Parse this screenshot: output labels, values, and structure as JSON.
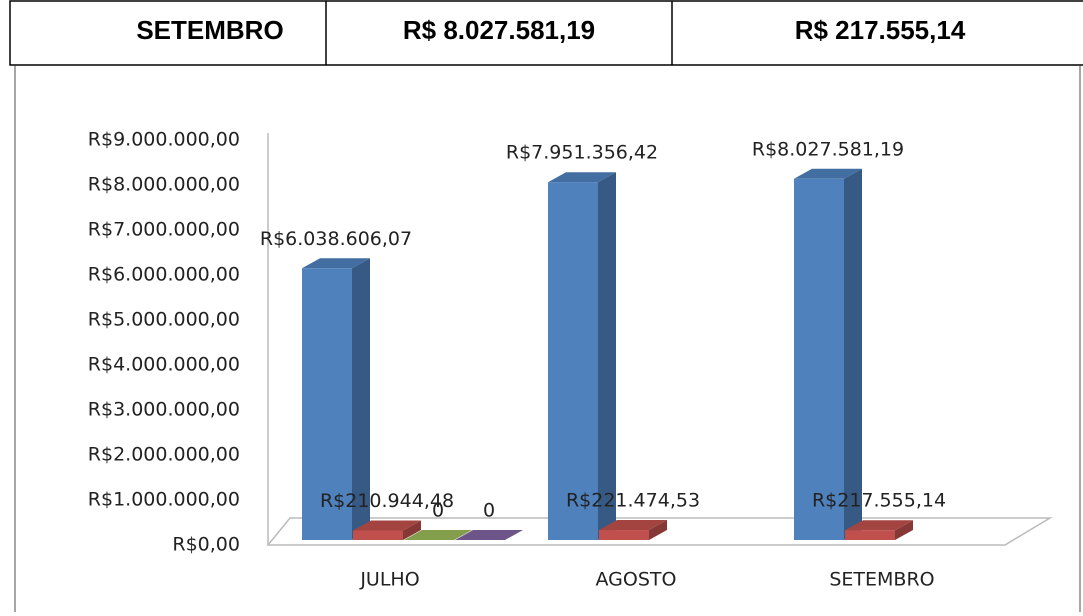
{
  "table": {
    "rows": [
      [
        "SETEMBRO",
        "R$  8.027.581,19",
        "R$  217.555,14"
      ]
    ]
  },
  "chart_data": {
    "type": "bar3d",
    "categories": [
      "JULHO",
      "AGOSTO",
      "SETEMBRO"
    ],
    "series": [
      {
        "color": "#4f81bd",
        "values": [
          6038606.07,
          7951356.42,
          8027581.19
        ],
        "value_labels": [
          "R$6.038.606,07",
          "R$7.951.356,42",
          "R$8.027.581,19"
        ]
      },
      {
        "color": "#c0504d",
        "values": [
          210944.48,
          221474.53,
          217555.14
        ],
        "value_labels": [
          "R$210.944,48",
          "R$221.474,53",
          "R$217.555,14"
        ]
      },
      {
        "color": "#9bbb59",
        "values": [
          0,
          null,
          null
        ]
      },
      {
        "color": "#8064a2",
        "values": [
          0,
          null,
          null
        ]
      }
    ],
    "ylim": [
      0,
      9000000
    ],
    "yticks": [
      {
        "value": 0,
        "label": "R$0,00"
      },
      {
        "value": 1000000,
        "label": "R$1.000.000,00"
      },
      {
        "value": 2000000,
        "label": "R$2.000.000,00"
      },
      {
        "value": 3000000,
        "label": "R$3.000.000,00"
      },
      {
        "value": 4000000,
        "label": "R$4.000.000,00"
      },
      {
        "value": 5000000,
        "label": "R$5.000.000,00"
      },
      {
        "value": 6000000,
        "label": "R$6.000.000,00"
      },
      {
        "value": 7000000,
        "label": "R$7.000.000,00"
      },
      {
        "value": 8000000,
        "label": "R$8.000.000,00"
      },
      {
        "value": 9000000,
        "label": "R$9.000.000,00"
      }
    ]
  }
}
